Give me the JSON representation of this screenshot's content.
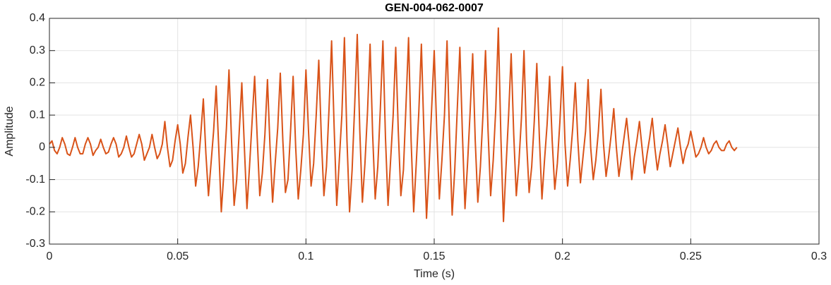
{
  "chart_data": {
    "type": "line",
    "title": "GEN-004-062-0007",
    "x_label": "Time (s)",
    "y_label": "Amplitude",
    "color": "#D95319",
    "grid": true,
    "xlim": [
      0,
      0.3
    ],
    "xticks": [
      0,
      0.05,
      0.1,
      0.15,
      0.2,
      0.25,
      0.3
    ],
    "ylim": [
      -0.3,
      0.4
    ],
    "yticks": [
      -0.3,
      -0.2,
      -0.1,
      0,
      0.1,
      0.2,
      0.3,
      0.4
    ],
    "x": [
      0,
      0.001,
      0.002,
      0.003,
      0.004,
      0.005,
      0.006,
      0.007,
      0.008,
      0.009,
      0.01,
      0.011,
      0.012,
      0.013,
      0.014,
      0.015,
      0.016,
      0.017,
      0.018,
      0.019,
      0.02,
      0.021,
      0.022,
      0.023,
      0.024,
      0.025,
      0.026,
      0.027,
      0.028,
      0.029,
      0.03,
      0.031,
      0.032,
      0.033,
      0.034,
      0.035,
      0.036,
      0.037,
      0.038,
      0.039,
      0.04,
      0.041,
      0.042,
      0.043,
      0.044,
      0.045,
      0.046,
      0.047,
      0.048,
      0.049,
      0.05,
      0.051,
      0.052,
      0.053,
      0.054,
      0.055,
      0.056,
      0.057,
      0.058,
      0.059,
      0.06,
      0.061,
      0.062,
      0.063,
      0.064,
      0.065,
      0.066,
      0.067,
      0.068,
      0.069,
      0.07,
      0.071,
      0.072,
      0.073,
      0.074,
      0.075,
      0.076,
      0.077,
      0.078,
      0.079,
      0.08,
      0.081,
      0.082,
      0.083,
      0.084,
      0.085,
      0.086,
      0.087,
      0.088,
      0.089,
      0.09,
      0.091,
      0.092,
      0.093,
      0.094,
      0.095,
      0.096,
      0.097,
      0.098,
      0.099,
      0.1,
      0.101,
      0.102,
      0.103,
      0.104,
      0.105,
      0.106,
      0.107,
      0.108,
      0.109,
      0.11,
      0.111,
      0.112,
      0.113,
      0.114,
      0.115,
      0.116,
      0.117,
      0.118,
      0.119,
      0.12,
      0.121,
      0.122,
      0.123,
      0.124,
      0.125,
      0.126,
      0.127,
      0.128,
      0.129,
      0.13,
      0.131,
      0.132,
      0.133,
      0.134,
      0.135,
      0.136,
      0.137,
      0.138,
      0.139,
      0.14,
      0.141,
      0.142,
      0.143,
      0.144,
      0.145,
      0.146,
      0.147,
      0.148,
      0.149,
      0.15,
      0.151,
      0.152,
      0.153,
      0.154,
      0.155,
      0.156,
      0.157,
      0.158,
      0.159,
      0.16,
      0.161,
      0.162,
      0.163,
      0.164,
      0.165,
      0.166,
      0.167,
      0.168,
      0.169,
      0.17,
      0.171,
      0.172,
      0.173,
      0.174,
      0.175,
      0.176,
      0.177,
      0.178,
      0.179,
      0.18,
      0.181,
      0.182,
      0.183,
      0.184,
      0.185,
      0.186,
      0.187,
      0.188,
      0.189,
      0.19,
      0.191,
      0.192,
      0.193,
      0.194,
      0.195,
      0.196,
      0.197,
      0.198,
      0.199,
      0.2,
      0.201,
      0.202,
      0.203,
      0.204,
      0.205,
      0.206,
      0.207,
      0.208,
      0.209,
      0.21,
      0.211,
      0.212,
      0.213,
      0.214,
      0.215,
      0.216,
      0.217,
      0.218,
      0.219,
      0.22,
      0.221,
      0.222,
      0.223,
      0.224,
      0.225,
      0.226,
      0.227,
      0.228,
      0.229,
      0.23,
      0.231,
      0.232,
      0.233,
      0.234,
      0.235,
      0.236,
      0.237,
      0.238,
      0.239,
      0.24,
      0.241,
      0.242,
      0.243,
      0.244,
      0.245,
      0.246,
      0.247,
      0.248,
      0.249,
      0.25,
      0.251,
      0.252,
      0.253,
      0.254,
      0.255,
      0.256,
      0.257,
      0.258,
      0.259,
      0.26,
      0.261,
      0.262,
      0.263,
      0.264,
      0.265,
      0.266,
      0.267,
      0.268
    ],
    "values": [
      0.01,
      0.02,
      -0.01,
      -0.02,
      0.0,
      0.03,
      0.01,
      -0.02,
      -0.025,
      0.0,
      0.03,
      0.0,
      -0.02,
      -0.02,
      0.01,
      0.03,
      0.01,
      -0.025,
      -0.01,
      0.0,
      0.025,
      0.0,
      -0.02,
      -0.015,
      0.01,
      0.03,
      0.01,
      -0.03,
      -0.02,
      0.0,
      0.035,
      0.0,
      -0.03,
      -0.02,
      0.01,
      0.04,
      0.01,
      -0.04,
      -0.02,
      0.0,
      0.04,
      0.0,
      -0.035,
      -0.02,
      0.01,
      0.08,
      0.0,
      -0.06,
      -0.04,
      0.02,
      0.07,
      0.01,
      -0.08,
      -0.05,
      0.03,
      0.1,
      0.0,
      -0.12,
      -0.06,
      0.04,
      0.15,
      -0.02,
      -0.15,
      -0.05,
      0.05,
      0.19,
      0.0,
      -0.2,
      -0.08,
      0.06,
      0.24,
      0.02,
      -0.18,
      -0.1,
      0.05,
      0.2,
      0.0,
      -0.19,
      -0.06,
      0.08,
      0.22,
      0.03,
      -0.15,
      -0.08,
      0.04,
      0.21,
      0.0,
      -0.17,
      -0.05,
      0.06,
      0.23,
      0.02,
      -0.14,
      -0.1,
      0.05,
      0.22,
      0.0,
      -0.16,
      -0.07,
      0.04,
      0.24,
      0.05,
      -0.12,
      -0.05,
      0.1,
      0.27,
      0.03,
      -0.15,
      -0.06,
      0.12,
      0.33,
      0.06,
      -0.18,
      -0.04,
      0.1,
      0.34,
      0.02,
      -0.2,
      -0.07,
      0.13,
      0.35,
      0.05,
      -0.17,
      -0.05,
      0.11,
      0.32,
      0.04,
      -0.16,
      -0.06,
      0.12,
      0.33,
      0.03,
      -0.18,
      -0.04,
      0.1,
      0.31,
      0.05,
      -0.15,
      -0.07,
      0.13,
      0.34,
      0.02,
      -0.2,
      -0.05,
      0.11,
      0.32,
      0.04,
      -0.22,
      -0.06,
      0.12,
      0.3,
      0.05,
      -0.16,
      -0.04,
      0.1,
      0.33,
      0.03,
      -0.21,
      -0.07,
      0.12,
      0.31,
      0.04,
      -0.19,
      -0.05,
      0.11,
      0.29,
      0.02,
      -0.17,
      -0.06,
      0.1,
      0.3,
      0.05,
      -0.15,
      -0.04,
      0.12,
      0.37,
      0.03,
      -0.23,
      -0.06,
      0.1,
      0.29,
      0.04,
      -0.15,
      -0.05,
      0.09,
      0.3,
      0.02,
      -0.14,
      -0.06,
      0.08,
      0.26,
      0.03,
      -0.16,
      -0.04,
      0.07,
      0.22,
      0.02,
      -0.13,
      -0.05,
      0.08,
      0.25,
      0.01,
      -0.12,
      -0.04,
      0.06,
      0.2,
      0.02,
      -0.11,
      -0.03,
      0.05,
      0.21,
      0.0,
      -0.1,
      -0.04,
      0.05,
      0.18,
      0.01,
      -0.09,
      -0.03,
      0.04,
      0.12,
      0.0,
      -0.09,
      -0.03,
      0.03,
      0.09,
      0.01,
      -0.1,
      -0.03,
      0.02,
      0.08,
      0.0,
      -0.08,
      -0.02,
      0.03,
      0.09,
      0.0,
      -0.07,
      -0.02,
      0.02,
      0.07,
      0.01,
      -0.06,
      -0.02,
      0.02,
      0.06,
      0.0,
      -0.05,
      -0.01,
      0.01,
      0.05,
      0.01,
      -0.03,
      -0.02,
      0.0,
      0.03,
      0.0,
      -0.02,
      -0.01,
      0.01,
      0.02,
      0.0,
      -0.01,
      -0.01,
      0.01,
      0.02,
      0.0,
      -0.01,
      0.0
    ]
  }
}
